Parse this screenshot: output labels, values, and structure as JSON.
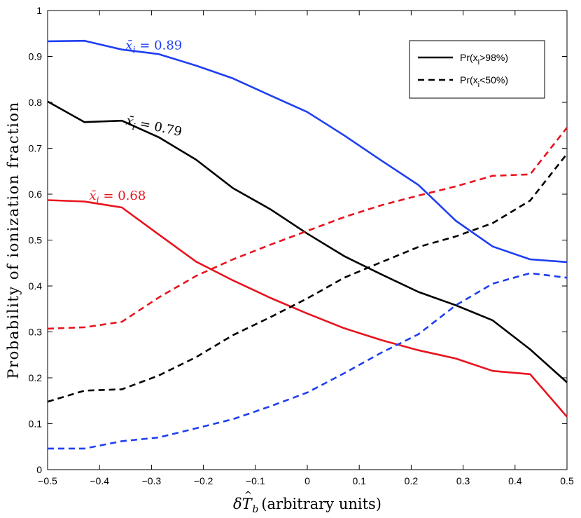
{
  "chart_data": {
    "type": "line",
    "title": "",
    "xlabel": "δT̂b (arbitrary units)",
    "xlabel_parts": {
      "symbol": "δ",
      "var": "T",
      "hat": "^",
      "sub": "b",
      "rest": "(arbitrary units)"
    },
    "ylabel": "Probability of ionization fraction",
    "xlim": [
      -0.5,
      0.5
    ],
    "ylim": [
      0,
      1
    ],
    "xticks": [
      -0.5,
      -0.4,
      -0.3,
      -0.2,
      -0.1,
      0,
      0.1,
      0.2,
      0.3,
      0.4,
      0.5
    ],
    "xtick_labels": [
      "−0.5",
      "−0.4",
      "−0.3",
      "−0.2",
      "−0.1",
      "0",
      "0.1",
      "0.2",
      "0.3",
      "0.4",
      "0.5"
    ],
    "yticks": [
      0,
      0.1,
      0.2,
      0.3,
      0.4,
      0.5,
      0.6,
      0.7,
      0.8,
      0.9,
      1
    ],
    "ytick_labels": [
      "0",
      "0.1",
      "0.2",
      "0.3",
      "0.4",
      "0.5",
      "0.6",
      "0.7",
      "0.8",
      "0.9",
      "1"
    ],
    "x": [
      -0.5,
      -0.429,
      -0.357,
      -0.286,
      -0.214,
      -0.143,
      -0.071,
      0,
      0.071,
      0.143,
      0.214,
      0.286,
      0.357,
      0.429,
      0.5
    ],
    "series": [
      {
        "name": "blue-solid",
        "group": "x̄i = 0.89",
        "measure": "Pr(xi>98%)",
        "color": "#1f3ff0",
        "dash": "solid",
        "values": [
          0.933,
          0.934,
          0.915,
          0.905,
          0.88,
          0.852,
          0.815,
          0.779,
          0.728,
          0.673,
          0.62,
          0.542,
          0.486,
          0.458,
          0.452
        ]
      },
      {
        "name": "black-solid",
        "group": "x̄i = 0.79",
        "measure": "Pr(xi>98%)",
        "color": "#000000",
        "dash": "solid",
        "values": [
          0.802,
          0.757,
          0.76,
          0.724,
          0.675,
          0.613,
          0.567,
          0.514,
          0.465,
          0.425,
          0.387,
          0.358,
          0.325,
          0.262,
          0.19
        ]
      },
      {
        "name": "red-solid",
        "group": "x̄i = 0.68",
        "measure": "Pr(xi>98%)",
        "color": "#e8141e",
        "dash": "solid",
        "values": [
          0.587,
          0.584,
          0.571,
          0.512,
          0.453,
          0.412,
          0.374,
          0.34,
          0.308,
          0.282,
          0.26,
          0.242,
          0.215,
          0.208,
          0.115
        ]
      },
      {
        "name": "blue-dashed",
        "group": "x̄i = 0.89",
        "measure": "Pr(xi<50%)",
        "color": "#1f3ff0",
        "dash": "dashed",
        "values": [
          0.046,
          0.046,
          0.062,
          0.07,
          0.09,
          0.11,
          0.138,
          0.168,
          0.21,
          0.255,
          0.295,
          0.358,
          0.405,
          0.428,
          0.418
        ]
      },
      {
        "name": "black-dashed",
        "group": "x̄i = 0.79",
        "measure": "Pr(xi<50%)",
        "color": "#000000",
        "dash": "dashed",
        "values": [
          0.148,
          0.172,
          0.175,
          0.205,
          0.245,
          0.293,
          0.332,
          0.373,
          0.418,
          0.452,
          0.485,
          0.508,
          0.537,
          0.586,
          0.688
        ]
      },
      {
        "name": "red-dashed",
        "group": "x̄i = 0.68",
        "measure": "Pr(xi<50%)",
        "color": "#e8141e",
        "dash": "dashed",
        "values": [
          0.307,
          0.31,
          0.322,
          0.375,
          0.422,
          0.458,
          0.49,
          0.52,
          0.55,
          0.576,
          0.597,
          0.617,
          0.64,
          0.643,
          0.745
        ]
      }
    ],
    "annotations": [
      {
        "text": "x̄i = 0.89",
        "color": "#1f3ff0",
        "at_x": -0.35,
        "at_y": 0.915,
        "rotation_deg": 0
      },
      {
        "text": "x̄i = 0.79",
        "color": "#000000",
        "at_x": -0.35,
        "at_y": 0.752,
        "rotation_deg": 12
      },
      {
        "text": "x̄i = 0.68",
        "color": "#e8141e",
        "at_x": -0.42,
        "at_y": 0.588,
        "rotation_deg": 0
      }
    ],
    "legend": {
      "location": "top-right",
      "entries": [
        {
          "label": "Pr(xi>98%)",
          "base": "Pr(x",
          "sub": "i",
          "tail": ">98%)",
          "dash": "solid",
          "color": "#000000"
        },
        {
          "label": "Pr(xi<50%)",
          "base": "Pr(x",
          "sub": "i",
          "tail": "<50%)",
          "dash": "dashed",
          "color": "#000000"
        }
      ]
    },
    "grid": false
  }
}
